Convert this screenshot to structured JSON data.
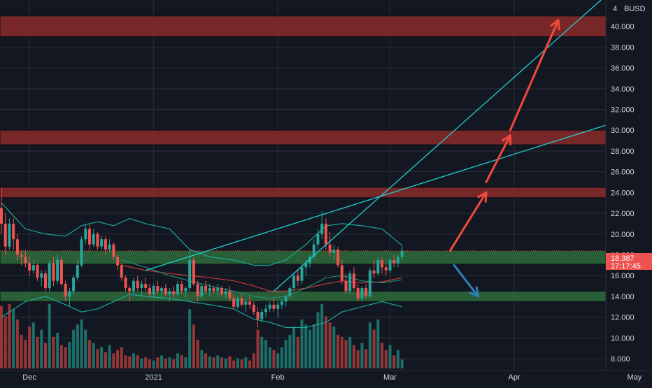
{
  "colors": {
    "background": "#131722",
    "grid": "#2a2e39",
    "axis_text": "#d1d4dc",
    "up": "#26a69a",
    "down": "#ef5350",
    "vol_up": "#1e7a72",
    "vol_down": "#a63a38",
    "resistance_zone": "#8b2a2a",
    "support_zone": "#2e6b3a",
    "trendline": "#1fd1d1",
    "bollinger": "#1aa89a",
    "ma_red": "#c43c3c",
    "ma_green": "#1f8a72",
    "arrow_red": "#f04a3c",
    "arrow_blue": "#2e7fb8",
    "price_label_bg": "#ef5350",
    "price_label_text": "#ffffff"
  },
  "chart_data": {
    "type": "candlestick",
    "currency": "BUSD",
    "ylim": [
      7.5,
      42.2
    ],
    "yticks": [
      "8.000",
      "10.000",
      "12.000",
      "14.000",
      "16.000",
      "18.000",
      "20.000",
      "22.000",
      "24.000",
      "26.000",
      "28.000",
      "30.000",
      "32.000",
      "34.000",
      "36.000",
      "38.000",
      "40.000"
    ],
    "xticks": [
      {
        "label": "Dec",
        "date": "2020-12-01"
      },
      {
        "label": "2021",
        "date": "2021-01-01"
      },
      {
        "label": "Feb",
        "date": "2021-02-01"
      },
      {
        "label": "Mar",
        "date": "2021-03-01"
      },
      {
        "label": "Apr",
        "date": "2021-04-01"
      },
      {
        "label": "May",
        "date": "2021-05-01"
      }
    ],
    "first_date": "2020-11-24",
    "last_price": "18.387",
    "countdown": "17:17:45",
    "candles": [
      [
        22.5,
        24.5,
        20.0,
        21.0
      ],
      [
        21.0,
        22.0,
        18.0,
        18.8
      ],
      [
        18.8,
        21.5,
        18.5,
        21.0
      ],
      [
        21.0,
        21.5,
        18.5,
        19.5
      ],
      [
        19.5,
        20.0,
        17.5,
        18.0
      ],
      [
        18.0,
        18.5,
        17.0,
        17.8
      ],
      [
        17.8,
        18.5,
        16.8,
        17.2
      ],
      [
        17.2,
        17.8,
        16.0,
        16.5
      ],
      [
        16.5,
        17.5,
        16.2,
        17.0
      ],
      [
        17.0,
        17.2,
        15.5,
        15.8
      ],
      [
        15.8,
        16.5,
        15.0,
        16.2
      ],
      [
        16.2,
        16.5,
        14.5,
        14.8
      ],
      [
        14.8,
        17.5,
        14.5,
        17.2
      ],
      [
        17.2,
        17.8,
        15.0,
        15.5
      ],
      [
        15.5,
        18.0,
        15.2,
        17.5
      ],
      [
        17.5,
        17.8,
        15.0,
        15.2
      ],
      [
        15.2,
        15.5,
        13.5,
        14.0
      ],
      [
        14.0,
        14.8,
        13.0,
        14.5
      ],
      [
        14.5,
        16.0,
        14.2,
        15.8
      ],
      [
        15.8,
        17.5,
        15.5,
        17.0
      ],
      [
        17.0,
        19.8,
        16.8,
        19.5
      ],
      [
        19.5,
        21.0,
        19.0,
        20.5
      ],
      [
        20.5,
        21.0,
        18.5,
        19.0
      ],
      [
        19.0,
        20.5,
        18.8,
        20.0
      ],
      [
        20.0,
        20.2,
        18.5,
        18.8
      ],
      [
        18.8,
        19.8,
        18.5,
        19.5
      ],
      [
        19.5,
        19.8,
        18.0,
        18.5
      ],
      [
        18.5,
        19.5,
        18.2,
        19.0
      ],
      [
        19.0,
        19.2,
        17.5,
        17.8
      ],
      [
        17.8,
        18.0,
        16.5,
        17.0
      ],
      [
        17.0,
        17.2,
        15.5,
        15.8
      ],
      [
        15.8,
        16.0,
        14.5,
        14.8
      ],
      [
        14.8,
        15.0,
        13.5,
        14.5
      ],
      [
        14.5,
        15.8,
        14.2,
        15.5
      ],
      [
        15.5,
        16.0,
        14.5,
        14.8
      ],
      [
        14.8,
        15.5,
        14.0,
        15.2
      ],
      [
        15.2,
        15.8,
        14.5,
        14.8
      ],
      [
        14.8,
        15.2,
        13.8,
        14.2
      ],
      [
        14.2,
        15.2,
        13.8,
        15.0
      ],
      [
        15.0,
        15.5,
        14.2,
        14.5
      ],
      [
        14.5,
        15.0,
        13.8,
        14.8
      ],
      [
        14.8,
        15.2,
        14.0,
        14.2
      ],
      [
        14.2,
        14.8,
        13.5,
        14.5
      ],
      [
        14.5,
        15.0,
        13.8,
        14.2
      ],
      [
        14.2,
        15.5,
        14.0,
        15.2
      ],
      [
        15.2,
        15.5,
        14.2,
        14.5
      ],
      [
        14.5,
        15.0,
        13.8,
        14.8
      ],
      [
        14.8,
        18.5,
        14.5,
        17.5
      ],
      [
        17.5,
        17.8,
        15.0,
        15.2
      ],
      [
        15.2,
        15.5,
        13.5,
        14.0
      ],
      [
        14.0,
        15.2,
        13.8,
        15.0
      ],
      [
        15.0,
        15.5,
        14.2,
        14.5
      ],
      [
        14.5,
        15.2,
        14.0,
        14.8
      ],
      [
        14.8,
        15.0,
        14.2,
        14.5
      ],
      [
        14.5,
        15.2,
        14.0,
        14.8
      ],
      [
        14.8,
        15.0,
        14.0,
        14.2
      ],
      [
        14.2,
        14.8,
        13.8,
        14.5
      ],
      [
        14.5,
        15.0,
        13.5,
        13.8
      ],
      [
        13.8,
        14.2,
        12.8,
        13.0
      ],
      [
        13.0,
        14.0,
        12.8,
        13.8
      ],
      [
        13.8,
        14.2,
        13.0,
        13.2
      ],
      [
        13.2,
        13.8,
        12.5,
        13.5
      ],
      [
        13.5,
        14.0,
        12.8,
        13.2
      ],
      [
        13.2,
        13.5,
        12.2,
        12.5
      ],
      [
        12.5,
        13.0,
        11.0,
        11.8
      ],
      [
        11.8,
        12.8,
        11.5,
        12.5
      ],
      [
        12.5,
        13.2,
        12.0,
        12.8
      ],
      [
        12.8,
        13.5,
        12.5,
        13.2
      ],
      [
        13.2,
        13.8,
        12.5,
        12.8
      ],
      [
        12.8,
        13.5,
        12.0,
        13.2
      ],
      [
        13.2,
        13.8,
        12.8,
        13.5
      ],
      [
        13.5,
        14.2,
        13.0,
        14.0
      ],
      [
        14.0,
        15.0,
        13.8,
        14.8
      ],
      [
        14.8,
        16.2,
        14.5,
        16.0
      ],
      [
        16.0,
        16.5,
        15.0,
        15.5
      ],
      [
        15.5,
        17.2,
        15.2,
        16.8
      ],
      [
        16.8,
        17.5,
        16.0,
        17.2
      ],
      [
        17.2,
        18.0,
        16.8,
        17.8
      ],
      [
        17.8,
        19.5,
        17.5,
        19.0
      ],
      [
        19.0,
        20.5,
        18.5,
        20.0
      ],
      [
        20.0,
        22.2,
        19.5,
        21.0
      ],
      [
        21.0,
        21.5,
        18.5,
        19.0
      ],
      [
        19.0,
        20.2,
        17.8,
        18.2
      ],
      [
        18.2,
        19.0,
        17.5,
        18.5
      ],
      [
        18.5,
        18.8,
        16.8,
        17.0
      ],
      [
        17.0,
        17.5,
        15.2,
        15.5
      ],
      [
        15.5,
        16.2,
        14.2,
        14.5
      ],
      [
        14.5,
        16.5,
        14.2,
        16.2
      ],
      [
        16.2,
        16.8,
        14.5,
        14.8
      ],
      [
        14.8,
        15.2,
        13.5,
        13.8
      ],
      [
        13.8,
        15.0,
        13.5,
        14.8
      ],
      [
        14.8,
        15.2,
        13.8,
        14.0
      ],
      [
        14.0,
        16.8,
        13.8,
        16.5
      ],
      [
        16.5,
        17.5,
        15.8,
        16.2
      ],
      [
        16.2,
        17.8,
        16.0,
        17.5
      ],
      [
        17.5,
        17.8,
        16.2,
        16.8
      ],
      [
        16.8,
        17.2,
        16.0,
        16.5
      ],
      [
        16.5,
        17.8,
        16.2,
        17.5
      ],
      [
        17.5,
        18.0,
        16.8,
        17.2
      ],
      [
        17.2,
        18.0,
        16.8,
        17.8
      ],
      [
        17.8,
        18.9,
        17.5,
        18.4
      ]
    ],
    "volume_up": [
      0,
      0,
      0,
      1,
      0,
      0,
      0,
      0,
      1,
      0,
      1,
      0,
      1,
      0,
      1,
      0,
      0,
      1,
      1,
      1,
      1,
      1,
      0,
      1,
      0,
      1,
      0,
      1,
      0,
      0,
      0,
      0,
      0,
      1,
      0,
      1,
      0,
      0,
      1,
      0,
      1,
      0,
      1,
      0,
      1,
      0,
      1,
      1,
      0,
      0,
      1,
      0,
      1,
      0,
      1,
      0,
      1,
      0,
      0,
      1,
      0,
      1,
      0,
      0,
      0,
      1,
      1,
      1,
      0,
      1,
      1,
      1,
      1,
      1,
      0,
      1,
      1,
      1,
      1,
      1,
      1,
      0,
      0,
      1,
      0,
      0,
      0,
      1,
      0,
      0,
      1,
      0,
      1,
      0,
      1,
      0,
      0,
      1,
      0,
      1,
      1
    ],
    "volume": [
      13.8,
      12.8,
      14.0,
      13.5,
      12.5,
      11.0,
      10.5,
      11.8,
      12.2,
      10.8,
      11.5,
      10.2,
      14.0,
      10.8,
      11.2,
      10.0,
      9.8,
      10.3,
      11.5,
      12.0,
      12.5,
      11.5,
      10.5,
      10.2,
      9.6,
      9.8,
      9.3,
      10.0,
      9.2,
      9.5,
      9.8,
      9.0,
      8.9,
      9.2,
      9.0,
      8.7,
      8.8,
      8.6,
      8.5,
      8.8,
      9.0,
      8.7,
      8.8,
      8.6,
      9.2,
      9.0,
      8.8,
      13.5,
      12.0,
      10.5,
      9.5,
      9.2,
      8.9,
      8.8,
      9.0,
      8.8,
      8.7,
      8.9,
      8.5,
      8.7,
      8.6,
      8.8,
      8.5,
      9.2,
      11.5,
      10.8,
      10.5,
      9.8,
      9.5,
      9.2,
      9.8,
      10.5,
      11.0,
      11.8,
      10.8,
      12.5,
      12.0,
      11.5,
      12.0,
      13.2,
      14.0,
      12.8,
      12.2,
      11.8,
      11.0,
      10.8,
      10.5,
      10.8,
      10.0,
      9.5,
      10.2,
      9.6,
      12.2,
      11.5,
      12.5,
      10.2,
      9.5,
      10.0,
      9.0,
      9.5,
      8.6
    ],
    "zones": [
      {
        "kind": "resistance",
        "from": 39.0,
        "to": 41.0
      },
      {
        "kind": "resistance",
        "from": 28.6,
        "to": 30.0
      },
      {
        "kind": "resistance",
        "from": 23.5,
        "to": 24.5
      },
      {
        "kind": "support",
        "from": 17.1,
        "to": 18.4
      },
      {
        "kind": "support",
        "from": 13.5,
        "to": 14.5
      }
    ],
    "trendlines": [
      {
        "from": {
          "date": "2020-12-30",
          "price": 16.5
        },
        "to": {
          "date": "2021-05-31",
          "price": 35.0
        }
      },
      {
        "from": {
          "date": "2021-01-31",
          "price": 14.5
        },
        "to": {
          "date": "2021-04-24",
          "price": 43.0
        }
      }
    ],
    "arrows": [
      {
        "color": "red",
        "from": {
          "date": "2021-03-16",
          "price": 18.4
        },
        "to": {
          "date": "2021-03-25",
          "price": 24.0
        }
      },
      {
        "color": "red",
        "from": {
          "date": "2021-03-25",
          "price": 25.0
        },
        "to": {
          "date": "2021-03-31",
          "price": 29.5
        }
      },
      {
        "color": "red",
        "from": {
          "date": "2021-03-31",
          "price": 30.0
        },
        "to": {
          "date": "2021-04-12",
          "price": 40.6
        }
      },
      {
        "color": "blue",
        "from": {
          "date": "2021-03-17",
          "price": 17.0
        },
        "to": {
          "date": "2021-03-23",
          "price": 14.0
        }
      }
    ],
    "bollinger_upper": [
      [
        0,
        23.0
      ],
      [
        6,
        20.5
      ],
      [
        11,
        20.0
      ],
      [
        16,
        19.8
      ],
      [
        20,
        20.8
      ],
      [
        24,
        21.2
      ],
      [
        28,
        20.8
      ],
      [
        32,
        21.5
      ],
      [
        36,
        21.0
      ],
      [
        42,
        20.5
      ],
      [
        47,
        18.5
      ],
      [
        52,
        17.8
      ],
      [
        58,
        17.5
      ],
      [
        63,
        17.0
      ],
      [
        67,
        17.0
      ],
      [
        71,
        17.5
      ],
      [
        76,
        19.0
      ],
      [
        81,
        20.8
      ],
      [
        85,
        21.0
      ],
      [
        90,
        20.8
      ],
      [
        95,
        20.5
      ],
      [
        100,
        18.9
      ]
    ],
    "bollinger_lower": [
      [
        0,
        12.0
      ],
      [
        6,
        13.5
      ],
      [
        11,
        14.0
      ],
      [
        16,
        13.2
      ],
      [
        20,
        12.5
      ],
      [
        24,
        12.8
      ],
      [
        28,
        13.5
      ],
      [
        32,
        14.2
      ],
      [
        36,
        14.0
      ],
      [
        42,
        13.8
      ],
      [
        47,
        13.5
      ],
      [
        52,
        13.2
      ],
      [
        58,
        12.8
      ],
      [
        63,
        11.8
      ],
      [
        67,
        11.5
      ],
      [
        71,
        11.0
      ],
      [
        76,
        11.0
      ],
      [
        81,
        11.5
      ],
      [
        85,
        12.5
      ],
      [
        90,
        13.0
      ],
      [
        95,
        13.5
      ],
      [
        100,
        13.0
      ]
    ],
    "ma_red": [
      [
        30,
        17.0
      ],
      [
        36,
        16.5
      ],
      [
        42,
        16.2
      ],
      [
        47,
        16.0
      ],
      [
        52,
        15.8
      ],
      [
        58,
        15.5
      ],
      [
        63,
        15.0
      ],
      [
        67,
        14.5
      ],
      [
        71,
        14.5
      ],
      [
        76,
        14.8
      ],
      [
        81,
        15.2
      ],
      [
        85,
        15.5
      ],
      [
        90,
        15.3
      ],
      [
        95,
        15.4
      ],
      [
        100,
        15.8
      ]
    ],
    "ma_green": [
      [
        30,
        17.5
      ],
      [
        36,
        16.8
      ],
      [
        42,
        16.0
      ],
      [
        47,
        15.5
      ],
      [
        52,
        15.0
      ],
      [
        58,
        14.5
      ],
      [
        63,
        14.0
      ],
      [
        67,
        13.8
      ],
      [
        71,
        14.0
      ],
      [
        76,
        14.8
      ],
      [
        81,
        15.8
      ],
      [
        85,
        16.0
      ],
      [
        90,
        15.5
      ],
      [
        95,
        15.3
      ],
      [
        100,
        15.6
      ]
    ]
  }
}
